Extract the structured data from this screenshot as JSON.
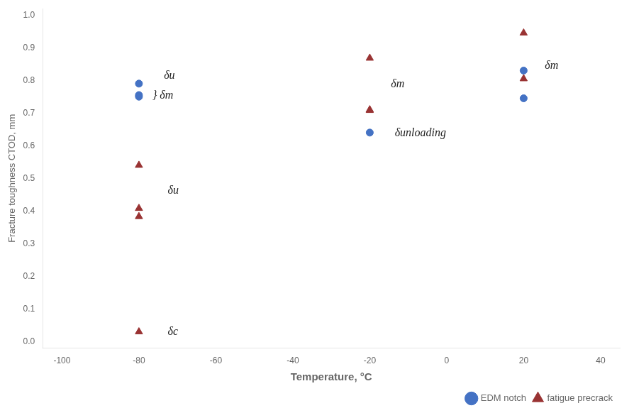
{
  "chart_data": {
    "type": "scatter",
    "xlabel": "Temperature, °C",
    "ylabel": "Fracture toughness CTOD, mm",
    "series": [
      {
        "name": "EDM notch",
        "color": "#4472C4",
        "marker": "circle",
        "x": [
          -80,
          -80,
          -80,
          -20,
          20,
          20
        ],
        "values": [
          0.79,
          0.755,
          0.75,
          0.64,
          0.83,
          0.745
        ]
      },
      {
        "name": "fatigue precrack",
        "color": "#993333",
        "marker": "triangle",
        "x": [
          -80,
          -80,
          -80,
          -80,
          -20,
          -20,
          -20,
          20,
          20
        ],
        "values": [
          0.03,
          0.54,
          0.408,
          0.383,
          0.868,
          0.71,
          0.708,
          0.945,
          0.805
        ]
      }
    ],
    "xlim": [
      -105,
      45
    ],
    "ylim": [
      -0.02,
      1.02
    ],
    "xticks": [
      -100,
      -80,
      -60,
      -40,
      -20,
      0,
      20,
      40
    ],
    "yticks": [
      {
        "value": 0,
        "label": "0.0"
      },
      0.1,
      0.2,
      0.3,
      0.4,
      0.5,
      0.6,
      0.7,
      0.8,
      0.9,
      {
        "value": 1,
        "label": "1.0"
      }
    ],
    "annotations": [
      {
        "text": "δu",
        "x": -73.5,
        "y": 0.813
      },
      {
        "text": "} δm",
        "x": -76.5,
        "y": 0.753
      },
      {
        "text": "δu",
        "x": -72.5,
        "y": 0.462
      },
      {
        "text": "δc",
        "x": -72.5,
        "y": 0.03
      },
      {
        "text": "δm",
        "x": -14.5,
        "y": 0.789
      },
      {
        "text": "δunloading",
        "x": -13.5,
        "y": 0.638
      },
      {
        "text": "δm",
        "x": 25.5,
        "y": 0.845
      }
    ],
    "grid": false,
    "legend": "lower right"
  }
}
